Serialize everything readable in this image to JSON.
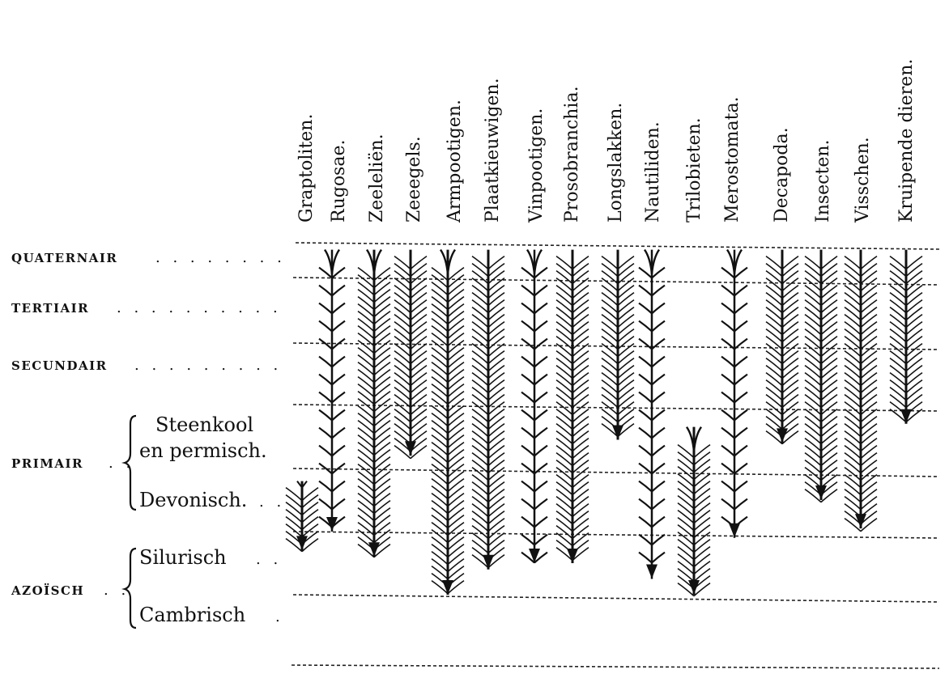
{
  "taxa": [
    {
      "label": "Graptoliten.",
      "range": [
        4.2,
        5.3
      ],
      "tip": "up",
      "dense": true
    },
    {
      "label": "Rugosae.",
      "range": [
        0.2,
        5.0
      ],
      "tip": "fork",
      "dense": false
    },
    {
      "label": "Zeeleliën.",
      "range": [
        0.2,
        5.4
      ],
      "tip": "fork",
      "dense": true
    },
    {
      "label": "Zeeegels.",
      "range": [
        0.2,
        3.8
      ],
      "tip": "dense",
      "dense": true
    },
    {
      "label": "Armpootigen.",
      "range": [
        0.2,
        6.0
      ],
      "tip": "fork",
      "dense": true
    },
    {
      "label": "Plaatkieuwigen.",
      "range": [
        0.2,
        5.6
      ],
      "tip": "dense",
      "dense": true
    },
    {
      "label": "Vinpootigen.",
      "range": [
        0.2,
        5.5
      ],
      "tip": "fork",
      "dense": false
    },
    {
      "label": "Prosobranchia.",
      "range": [
        0.2,
        5.5
      ],
      "tip": "dense",
      "dense": true
    },
    {
      "label": "Longslakken.",
      "range": [
        0.2,
        3.55
      ],
      "tip": "dense",
      "dense": true
    },
    {
      "label": "Nautiliden.",
      "range": [
        0.2,
        5.75
      ],
      "tip": "fork",
      "dense": false
    },
    {
      "label": "Trilobieten.",
      "range": [
        3.35,
        6.0
      ],
      "tip": "fork",
      "dense": true
    },
    {
      "label": "Merostomata.",
      "range": [
        0.2,
        5.1
      ],
      "tip": "fork",
      "dense": false
    },
    {
      "label": "Decapoda.",
      "range": [
        0.2,
        3.6
      ],
      "tip": "dense",
      "dense": true
    },
    {
      "label": "Insecten.",
      "range": [
        0.2,
        4.5
      ],
      "tip": "dense",
      "dense": true
    },
    {
      "label": "Visschen.",
      "range": [
        0.2,
        4.95
      ],
      "tip": "dense",
      "dense": true
    },
    {
      "label": "Kruipende dieren.",
      "range": [
        0.2,
        3.3
      ],
      "tip": "dense",
      "dense": true
    }
  ],
  "eras": [
    {
      "label": "QUATERNAIR",
      "dots": ". . . . . . . ."
    },
    {
      "label": "TERTIAIR",
      "dots": ". . . . . . . . . ."
    },
    {
      "label": "SECUNDAIR",
      "dots": ". . . . . . . . ."
    },
    {
      "label": "PRIMAIR",
      "dots": ". ."
    },
    {
      "label": "AZOÏSCH",
      "dots": ". ."
    }
  ],
  "sub_periods": [
    {
      "label": "Steenkool",
      "dots": ""
    },
    {
      "label": "en permisch.",
      "dots": ""
    },
    {
      "label": "Devonisch.",
      "dots": ". ."
    },
    {
      "label": "Silurisch",
      "dots": ". ."
    },
    {
      "label": "Cambrisch",
      "dots": "."
    }
  ]
}
